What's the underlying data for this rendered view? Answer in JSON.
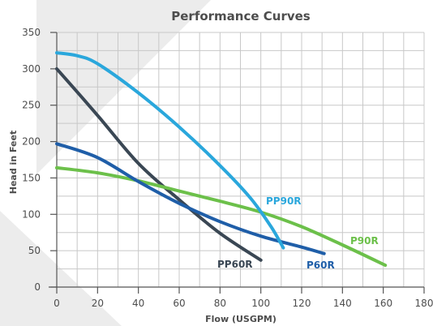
{
  "chart_data": {
    "type": "line",
    "title": "Performance Curves",
    "xlabel": "Flow (USGPM)",
    "ylabel": "Head in Feet",
    "xlim": [
      0,
      180
    ],
    "ylim": [
      0,
      350
    ],
    "x_ticks": [
      0,
      20,
      40,
      60,
      80,
      100,
      120,
      140,
      160,
      180
    ],
    "y_ticks": [
      0,
      50,
      100,
      150,
      200,
      250,
      300,
      350
    ],
    "grid": true,
    "series": [
      {
        "name": "PP60R",
        "color": "#3a4754",
        "points": [
          [
            0,
            300
          ],
          [
            20,
            236
          ],
          [
            40,
            170
          ],
          [
            60,
            120
          ],
          [
            80,
            74
          ],
          [
            100,
            37
          ]
        ]
      },
      {
        "name": "P60R",
        "color": "#1f5ea8",
        "points": [
          [
            0,
            197
          ],
          [
            20,
            178
          ],
          [
            40,
            145
          ],
          [
            60,
            115
          ],
          [
            80,
            90
          ],
          [
            100,
            70
          ],
          [
            120,
            55
          ],
          [
            131,
            46
          ]
        ]
      },
      {
        "name": "PP90R",
        "color": "#2aa7dc",
        "points": [
          [
            0,
            322
          ],
          [
            10,
            318
          ],
          [
            20,
            307
          ],
          [
            40,
            267
          ],
          [
            60,
            220
          ],
          [
            80,
            167
          ],
          [
            95,
            122
          ],
          [
            105,
            83
          ],
          [
            111,
            54
          ]
        ]
      },
      {
        "name": "P90R",
        "color": "#6cc04a",
        "points": [
          [
            0,
            164
          ],
          [
            20,
            157
          ],
          [
            40,
            146
          ],
          [
            60,
            132
          ],
          [
            80,
            118
          ],
          [
            100,
            103
          ],
          [
            120,
            83
          ],
          [
            140,
            58
          ],
          [
            161,
            30
          ]
        ]
      }
    ]
  }
}
